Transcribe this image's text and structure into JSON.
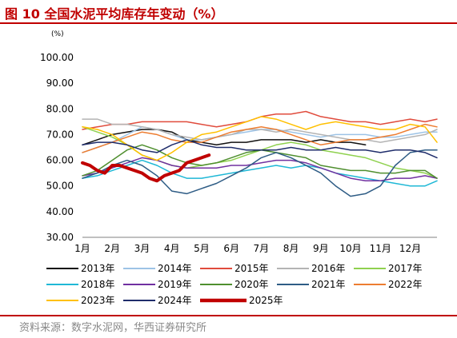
{
  "title": "图 10 全国水泥平均库存年变动（%）",
  "source": "资料来源：数字水泥网，华西证券研究所",
  "colors": {
    "accent": "#c00000",
    "series": [
      "#111111",
      "#9dc3e6",
      "#e04b3c",
      "#b4b4b4",
      "#8fd14f",
      "#1fb8d6",
      "#7030a0",
      "#4f8f2f",
      "#2e5c85",
      "#ed7d31",
      "#ffc000",
      "#1f2d6b",
      "#c00000"
    ]
  },
  "chart_data": {
    "type": "line",
    "unit": "(%)",
    "ylim": [
      30,
      100
    ],
    "yticks": [
      "100.00",
      "90.00",
      "80.00",
      "70.00",
      "60.00",
      "50.00",
      "40.00",
      "30.00"
    ],
    "ytick_values": [
      100,
      90,
      80,
      70,
      60,
      50,
      40,
      30
    ],
    "xlim": [
      1,
      12.9
    ],
    "xticks": [
      "1月",
      "2月",
      "3月",
      "4月",
      "5月",
      "6月",
      "7月",
      "8月",
      "9月",
      "10月",
      "11月",
      "12月"
    ],
    "xtick_values": [
      1,
      2,
      3,
      4,
      5,
      6,
      7,
      8,
      9,
      10,
      11,
      12
    ],
    "grid": false,
    "legend_position": "bottom",
    "series": [
      {
        "name": "2013年",
        "x": [
          1,
          1.5,
          2,
          2.5,
          3,
          3.5,
          4,
          4.5,
          5,
          5.5,
          6,
          6.5,
          7,
          7.5,
          8,
          8.5,
          9,
          9.5,
          10,
          10.5
        ],
        "values": [
          66,
          68,
          70,
          71,
          72,
          72,
          71,
          68,
          67,
          66,
          67,
          67,
          68,
          68,
          68,
          67,
          68,
          67,
          67,
          66
        ]
      },
      {
        "name": "2014年",
        "x": [
          1,
          1.5,
          2,
          2.5,
          3,
          3.5,
          4,
          4.5,
          5,
          5.5,
          6,
          6.5,
          7,
          7.5,
          8,
          8.5,
          9,
          9.5,
          10,
          10.5,
          11,
          11.5,
          12,
          12.5,
          12.9
        ],
        "values": [
          63,
          65,
          67,
          70,
          73,
          72,
          70,
          68,
          68,
          69,
          70,
          71,
          72,
          72,
          71,
          70,
          69,
          70,
          70,
          70,
          69,
          69,
          70,
          71,
          71
        ]
      },
      {
        "name": "2015年",
        "x": [
          1,
          1.5,
          2,
          2.5,
          3,
          3.5,
          4,
          4.5,
          5,
          5.5,
          6,
          6.5,
          7,
          7.5,
          8,
          8.5,
          9,
          9.5,
          10,
          10.5,
          11,
          11.5,
          12,
          12.5,
          12.9
        ],
        "values": [
          72,
          73,
          74,
          74,
          75,
          75,
          75,
          75,
          74,
          73,
          74,
          75,
          77,
          78,
          78,
          79,
          77,
          76,
          75,
          75,
          74,
          75,
          76,
          75,
          76
        ]
      },
      {
        "name": "2016年",
        "x": [
          1,
          1.5,
          2,
          2.5,
          3,
          3.5,
          4,
          4.5,
          5,
          5.5,
          6,
          6.5,
          7,
          7.5,
          8,
          8.5,
          9,
          9.5,
          10,
          10.5,
          11,
          11.5,
          12,
          12.5,
          12.9
        ],
        "values": [
          76,
          76,
          74,
          74,
          73,
          72,
          70,
          69,
          68,
          69,
          70,
          72,
          72,
          71,
          72,
          71,
          70,
          69,
          68,
          68,
          67,
          68,
          69,
          70,
          72
        ]
      },
      {
        "name": "2017年",
        "x": [
          1,
          1.5,
          2,
          2.5,
          3,
          3.5,
          4,
          4.5,
          5,
          5.5,
          6,
          6.5,
          7,
          7.5,
          8,
          8.5,
          9,
          9.5,
          10,
          10.5,
          11,
          11.5,
          12,
          12.5,
          12.9
        ],
        "values": [
          73,
          71,
          69,
          66,
          62,
          60,
          58,
          57,
          58,
          59,
          60,
          62,
          64,
          66,
          67,
          66,
          64,
          63,
          62,
          61,
          59,
          57,
          56,
          55,
          53
        ]
      },
      {
        "name": "2018年",
        "x": [
          1,
          1.5,
          2,
          2.5,
          3,
          3.5,
          4,
          4.5,
          5,
          5.5,
          6,
          6.5,
          7,
          7.5,
          8,
          8.5,
          9,
          9.5,
          10,
          10.5,
          11,
          11.5,
          12,
          12.5,
          12.9
        ],
        "values": [
          53,
          54,
          56,
          58,
          60,
          58,
          55,
          53,
          53,
          54,
          55,
          56,
          57,
          58,
          57,
          58,
          57,
          55,
          54,
          53,
          52,
          51,
          50,
          50,
          52
        ]
      },
      {
        "name": "2019年",
        "x": [
          1,
          1.5,
          2,
          2.5,
          3,
          3.5,
          4,
          4.5,
          5,
          5.5,
          6,
          6.5,
          7,
          7.5,
          8,
          8.5,
          9,
          9.5,
          10,
          10.5,
          11,
          11.5,
          12,
          12.5,
          12.9
        ],
        "values": [
          54,
          55,
          57,
          59,
          61,
          60,
          58,
          57,
          57,
          57,
          58,
          58,
          59,
          60,
          60,
          59,
          57,
          55,
          53,
          52,
          52,
          53,
          53,
          54,
          53
        ]
      },
      {
        "name": "2020年",
        "x": [
          1,
          1.5,
          2,
          2.5,
          3,
          3.5,
          4,
          4.5,
          5,
          5.5,
          6,
          6.5,
          7,
          7.5,
          8,
          8.5,
          9,
          9.5,
          10,
          10.5,
          11,
          11.5,
          12,
          12.5,
          12.9
        ],
        "values": [
          54,
          56,
          60,
          64,
          66,
          64,
          61,
          59,
          58,
          59,
          61,
          63,
          64,
          63,
          62,
          61,
          58,
          57,
          56,
          56,
          55,
          55,
          56,
          56,
          53
        ]
      },
      {
        "name": "2021年",
        "x": [
          1,
          1.5,
          2,
          2.5,
          3,
          3.5,
          4,
          4.5,
          5,
          5.5,
          6,
          6.5,
          7,
          7.5,
          8,
          8.5,
          9,
          9.5,
          10,
          10.5,
          11,
          11.5,
          12,
          12.5,
          12.9
        ],
        "values": [
          53,
          55,
          58,
          60,
          58,
          54,
          48,
          47,
          49,
          51,
          54,
          57,
          61,
          63,
          61,
          58,
          55,
          50,
          46,
          47,
          50,
          58,
          63,
          64,
          64
        ]
      },
      {
        "name": "2022年",
        "x": [
          1,
          1.5,
          2,
          2.5,
          3,
          3.5,
          4,
          4.5,
          5,
          5.5,
          6,
          6.5,
          7,
          7.5,
          8,
          8.5,
          9,
          9.5,
          10,
          10.5,
          11,
          11.5,
          12,
          12.5,
          12.9
        ],
        "values": [
          63,
          65,
          67,
          69,
          71,
          70,
          68,
          67,
          67,
          69,
          71,
          72,
          73,
          72,
          70,
          68,
          66,
          67,
          68,
          68,
          69,
          70,
          72,
          74,
          73
        ]
      },
      {
        "name": "2023年",
        "x": [
          1,
          1.5,
          2,
          2.5,
          3,
          3.5,
          4,
          4.5,
          5,
          5.5,
          6,
          6.5,
          7,
          7.5,
          8,
          8.5,
          9,
          9.5,
          10,
          10.5,
          11,
          11.5,
          12,
          12.5,
          12.9
        ],
        "values": [
          73,
          72,
          70,
          66,
          62,
          60,
          63,
          67,
          70,
          71,
          73,
          75,
          77,
          76,
          74,
          72,
          74,
          75,
          74,
          73,
          72,
          72,
          74,
          73,
          67
        ]
      },
      {
        "name": "2024年",
        "x": [
          1,
          1.5,
          2,
          2.5,
          3,
          3.5,
          4,
          4.5,
          5,
          5.5,
          6,
          6.5,
          7,
          7.5,
          8,
          8.5,
          9,
          9.5,
          10,
          10.5,
          11,
          11.5,
          12,
          12.5,
          12.9
        ],
        "values": [
          66,
          67,
          67,
          66,
          64,
          63,
          66,
          68,
          66,
          65,
          65,
          64,
          64,
          64,
          65,
          64,
          64,
          65,
          64,
          64,
          63,
          64,
          64,
          63,
          61
        ]
      },
      {
        "name": "2025年",
        "x": [
          1,
          1.25,
          1.5,
          1.75,
          2,
          2.25,
          2.5,
          2.75,
          3,
          3.25,
          3.5,
          3.75,
          4,
          4.25,
          4.5,
          4.75,
          5,
          5.25
        ],
        "values": [
          59,
          58,
          56,
          55,
          58,
          58,
          57,
          56,
          55,
          53,
          52,
          54,
          55,
          56,
          59,
          60,
          61,
          62
        ]
      }
    ]
  }
}
